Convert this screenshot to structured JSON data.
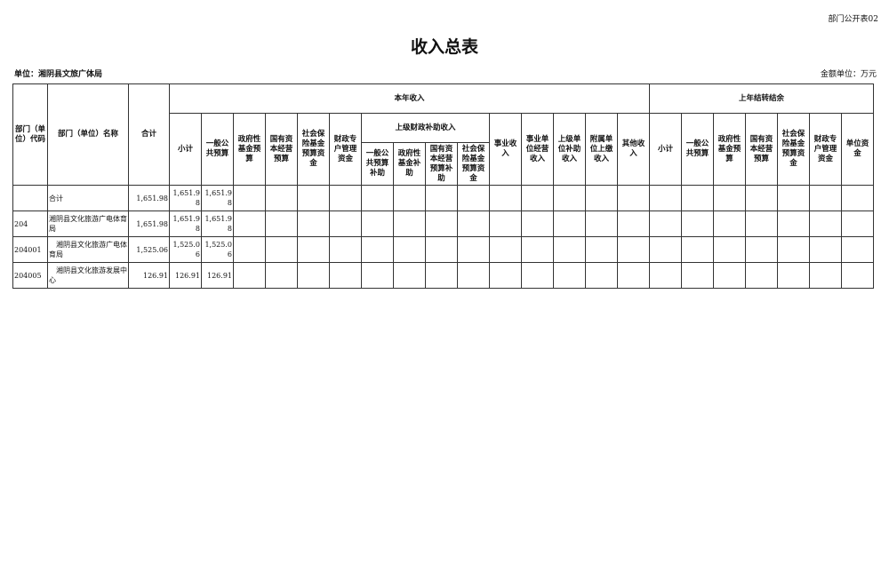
{
  "doc_code": "部门公开表02",
  "title": "收入总表",
  "unit": "单位：湘阴县文旅广体局",
  "money_unit": "金额单位：万元",
  "headers": {
    "code": "部门（单位）代码",
    "name": "部门（单位）名称",
    "total": "合计",
    "this_year": "本年收入",
    "last_year": "上年结转结余",
    "sub": "上级财政补助收入",
    "ty": [
      "小计",
      "一般公共预算",
      "政府性基金预算",
      "国有资本经营预算",
      "社会保险基金预算资金",
      "财政专户管理资金"
    ],
    "subcols": [
      "一般公共预算补助",
      "政府性基金补助",
      "国有资本经营预算补助",
      "社会保险基金预算资金"
    ],
    "ty2": [
      "事业收入",
      "事业单位经营收入",
      "上级单位补助收入",
      "附属单位上缴收入",
      "其他收入"
    ],
    "ly": [
      "小计",
      "一般公共预算",
      "政府性基金预算",
      "国有资本经营预算",
      "社会保险基金预算资金",
      "财政专户管理资金",
      "单位资金"
    ]
  },
  "rows": [
    {
      "code": "",
      "name": "合计",
      "total": "1,651.98",
      "subtotal": "1,651.98",
      "general": "1,651.98"
    },
    {
      "code": "204",
      "name": "湘阴县文化旅游广电体育局",
      "total": "1,651.98",
      "subtotal": "1,651.98",
      "general": "1,651.98"
    },
    {
      "code": "204001",
      "name": "　湘阴县文化旅游广电体育局",
      "total": "1,525.06",
      "subtotal": "1,525.06",
      "general": "1,525.06"
    },
    {
      "code": "204005",
      "name": "　湘阴县文化旅游发展中心",
      "total": "126.91",
      "subtotal": "126.91",
      "general": "126.91"
    }
  ]
}
